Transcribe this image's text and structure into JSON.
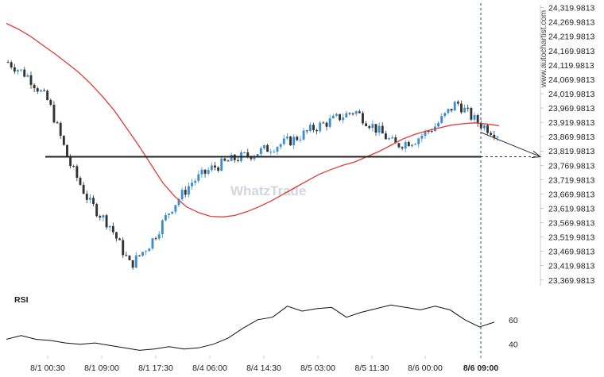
{
  "watermark_side": "www.autochartist.com",
  "watermark_center": "WhatzTrade",
  "colors": {
    "candle": "#3b8fd0",
    "candle_down": "#333333",
    "ma": "#e03a3a",
    "support": "#222222",
    "rsi": "#111111",
    "forecast": "#333333",
    "vline": "#1f4e79",
    "axis": "#999999"
  },
  "chart_data": [
    {
      "type": "candlestick",
      "title": "",
      "ylim": [
        23350,
        24330
      ],
      "y_ticks": [
        "24,319.9813",
        "24,269.9813",
        "24,219.9813",
        "24,169.9813",
        "24,119.9813",
        "24,069.9813",
        "24,019.9813",
        "23,969.9813",
        "23,919.9813",
        "23,869.9813",
        "23,819.9813",
        "23,769.9813",
        "23,719.9813",
        "23,669.9813",
        "23,619.9813",
        "23,569.9813",
        "23,519.9813",
        "23,469.9813",
        "23,419.9813",
        "23,369.9813"
      ],
      "x_ticks": [
        "8/1 00:30",
        "8/1 09:00",
        "8/1 17:30",
        "8/4 06:00",
        "8/4 14:30",
        "8/5 03:00",
        "8/5 11:30",
        "8/6 00:00",
        "8/6 09:00"
      ],
      "support_level": 23800,
      "forecast_target": 23800,
      "ma_series": [
        24265,
        24245,
        24220,
        24190,
        24160,
        24128,
        24095,
        24055,
        24010,
        23960,
        23900,
        23840,
        23775,
        23710,
        23662,
        23625,
        23605,
        23592,
        23590,
        23595,
        23608,
        23625,
        23645,
        23668,
        23692,
        23715,
        23738,
        23755,
        23770,
        23782,
        23800,
        23818,
        23840,
        23862,
        23878,
        23890,
        23900,
        23910,
        23915,
        23918,
        23914,
        23908
      ],
      "close_series": [
        24130,
        24080,
        23990,
        23780,
        23640,
        23560,
        23420,
        23500,
        23620,
        23710,
        23760,
        23790,
        23810,
        23835,
        23860,
        23900,
        23930,
        23960,
        23900,
        23840,
        23860,
        23910,
        23990,
        23920,
        23880
      ],
      "ohlc_note": "candles generated from close_series"
    },
    {
      "type": "line",
      "title": "RSI",
      "ylim": [
        32,
        78
      ],
      "y_ticks": [
        "60",
        "40"
      ],
      "values": [
        44,
        47,
        44,
        43,
        41,
        40,
        41,
        39,
        37,
        35,
        36,
        38,
        36,
        37,
        40,
        45,
        53,
        60,
        62,
        71,
        67,
        69,
        70,
        62,
        66,
        69,
        72,
        70,
        68,
        71,
        68,
        60,
        54,
        58
      ]
    }
  ]
}
